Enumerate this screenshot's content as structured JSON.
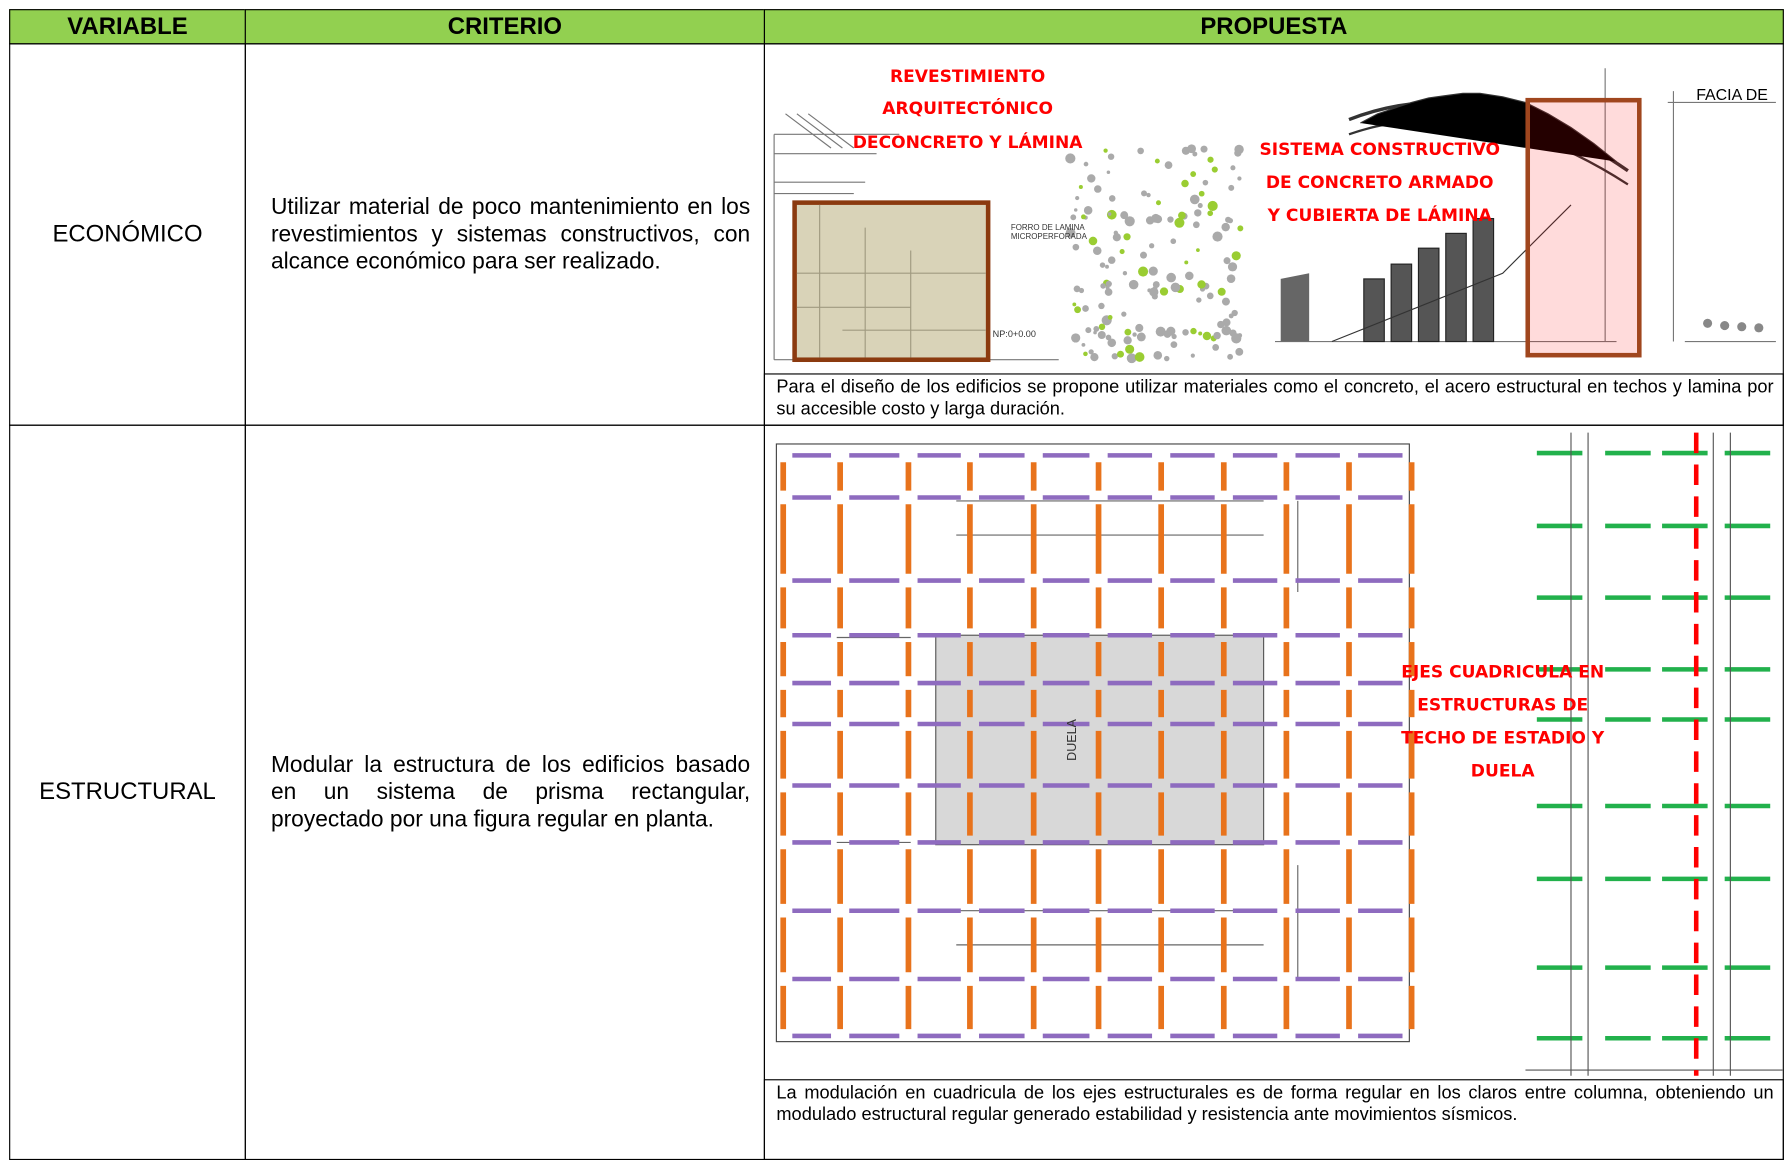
{
  "header": {
    "columns": [
      "VARIABLE",
      "CRITERIO",
      "PROPUESTA"
    ]
  },
  "rows": [
    {
      "variable": "ECONÓMICO",
      "criterio": "Utilizar material de poco mantenimiento en los revestimientos y sistemas constructivos, con alcance económico para ser realizado.",
      "image_labels": [
        "REVESTIMIENTO",
        "ARQUITECTÓNICO",
        "DECONCRETO Y LÁMINA",
        "SISTEMA CONSTRUCTIVO",
        "DE CONCRETO ARMADO",
        "Y CUBIERTA DE LÁMINA",
        "FACIA DE",
        "FORRO DE LAMINA",
        "MICROPERFORADA",
        "NP:0+0.00"
      ],
      "caption": "Para el diseño de los edificios se propone utilizar materiales como el concreto, el acero estructural en techos y lamina por su accesible costo y larga duración."
    },
    {
      "variable": "ESTRUCTURAL",
      "criterio": "Modular la estructura de los edificios basado en un sistema de prisma rectangular, proyectado por una figura regular en planta.",
      "image_labels": [
        "EJES CUADRICULA EN",
        "ESTRUCTURAS DE",
        "TECHO DE ESTADIO Y",
        "DUELA",
        "DUELA"
      ],
      "caption": "La modulación en cuadricula de los ejes estructurales es de forma regular en los claros entre columna, obteniendo un modulado estructural regular generado estabilidad y resistencia ante movimientos sísmicos."
    }
  ]
}
